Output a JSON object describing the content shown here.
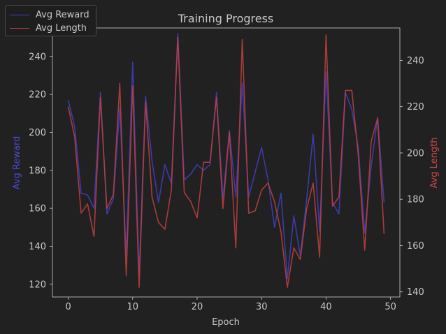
{
  "chart_data": {
    "type": "line",
    "title": "Training Progress",
    "xlabel": "Epoch",
    "ylabel_left": "Avg Reward",
    "ylabel_right": "Avg Length",
    "xlim": [
      -2.45,
      51.45
    ],
    "ylim_left": [
      113.3,
      255.0
    ],
    "ylim_right": [
      137.8,
      254.0
    ],
    "x_ticks": [
      0,
      10,
      20,
      30,
      40,
      50
    ],
    "y_ticks_left": [
      120,
      140,
      160,
      180,
      200,
      220,
      240
    ],
    "y_ticks_right": [
      140,
      160,
      180,
      200,
      220,
      240
    ],
    "grid": false,
    "legend_position": "top-left",
    "x": [
      0,
      1,
      2,
      3,
      4,
      5,
      6,
      7,
      8,
      9,
      10,
      11,
      12,
      13,
      14,
      15,
      16,
      17,
      18,
      19,
      20,
      21,
      22,
      23,
      24,
      25,
      26,
      27,
      28,
      29,
      30,
      31,
      32,
      33,
      34,
      35,
      36,
      37,
      38,
      39,
      40,
      41,
      42,
      43,
      44,
      45,
      46,
      47,
      48,
      49
    ],
    "series": [
      {
        "name": "Avg Reward",
        "axis": "left",
        "color": "#4040c0",
        "values": [
          217,
          203,
          168,
          167,
          160,
          221,
          157,
          165,
          213,
          135,
          237,
          125,
          219,
          185,
          163,
          183,
          173,
          252,
          175,
          178,
          183,
          180,
          183,
          221,
          165,
          201,
          166,
          226,
          166,
          179,
          192,
          175,
          150,
          168,
          123,
          156,
          135,
          165,
          199,
          148,
          232,
          163,
          157,
          221,
          212,
          192,
          147,
          182,
          208,
          163
        ]
      },
      {
        "name": "Avg Length",
        "axis": "right",
        "color": "#c04040",
        "values": [
          220,
          207,
          174,
          178,
          164,
          224,
          176,
          182,
          230,
          147,
          229,
          142,
          222,
          181,
          170,
          167,
          184,
          250,
          183,
          179,
          172,
          196,
          196,
          224,
          176,
          209,
          159,
          249,
          174,
          175,
          184,
          187,
          179,
          166,
          142,
          159,
          154,
          176,
          187,
          155,
          251,
          177,
          181,
          227,
          227,
          199,
          158,
          205,
          215,
          165
        ]
      }
    ]
  }
}
